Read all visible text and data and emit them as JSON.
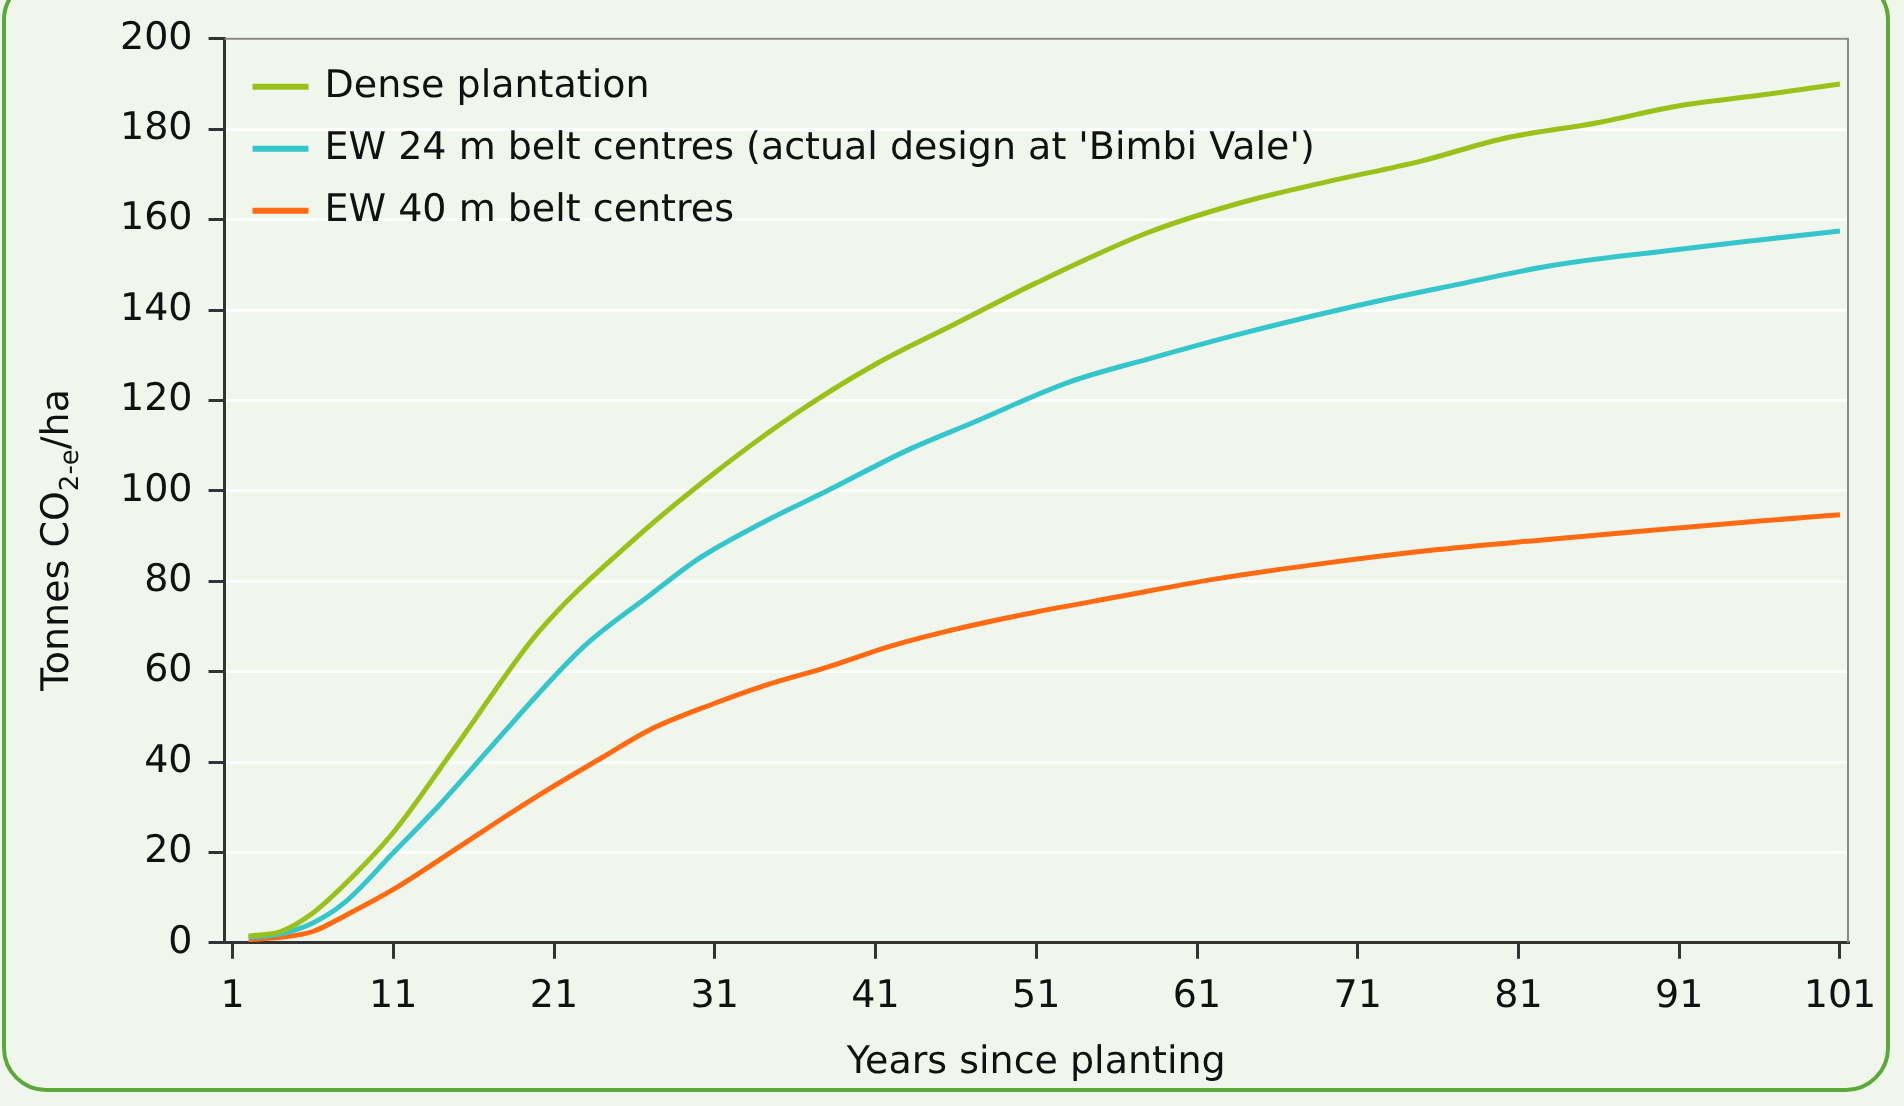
{
  "chart_data": {
    "type": "line",
    "xlabel": "Years since planting",
    "ylabel": "Tonnes CO$_{2-e}$/ha",
    "xlim": [
      0.5,
      101.5
    ],
    "xticks": [
      1,
      11,
      21,
      31,
      41,
      51,
      61,
      71,
      81,
      91,
      101
    ],
    "ylim": [
      0,
      200
    ],
    "yticks": [
      0,
      20,
      40,
      60,
      80,
      100,
      120,
      140,
      160,
      180,
      200
    ],
    "grid": "y",
    "legend": "top left",
    "marker": "none",
    "line_style": "solid",
    "series": [
      {
        "name": "Dense plantation",
        "color": "#99c11a",
        "x": [
          2,
          4,
          6,
          8,
          11,
          15,
          20,
          26,
          31,
          36,
          41,
          46,
          51,
          58,
          64,
          69,
          75,
          80,
          86,
          91,
          96,
          101
        ],
        "values": [
          1.5,
          2.5,
          6.6,
          13,
          24.4,
          44,
          68.6,
          89.3,
          104,
          117,
          128,
          137,
          146,
          157.2,
          164,
          168.3,
          173,
          177.9,
          181.5,
          185.2,
          187.5,
          190
        ]
      },
      {
        "name": "EW 24 m belt centres (actual design at 'Bimbi Vale')",
        "color": "#35c6cc",
        "x": [
          2,
          4,
          6,
          8,
          11,
          14,
          17,
          20,
          23,
          27,
          30,
          34,
          38,
          43,
          47,
          53,
          58,
          64,
          71,
          77,
          83,
          90,
          96,
          101
        ],
        "values": [
          1.2,
          2,
          4.4,
          9,
          19.9,
          31,
          43,
          55,
          66,
          77,
          85,
          93,
          100,
          109,
          115,
          124,
          129.2,
          135,
          141,
          145.5,
          149.8,
          153,
          155.5,
          157.5
        ]
      },
      {
        "name": "EW 40 m belt centres",
        "color": "#ff6a13",
        "x": [
          2,
          4,
          6,
          8,
          11,
          15,
          18,
          21,
          24,
          27,
          31,
          34,
          38,
          42,
          46,
          51,
          56,
          62,
          69,
          76,
          83,
          90,
          96,
          101
        ],
        "values": [
          0.7,
          1.2,
          2.5,
          6,
          11.8,
          21,
          28,
          34.7,
          41,
          47.2,
          53,
          56.8,
          61,
          65.7,
          69.4,
          73.2,
          76.5,
          80.4,
          84,
          87,
          89.3,
          91.5,
          93.3,
          94.7
        ]
      }
    ]
  }
}
